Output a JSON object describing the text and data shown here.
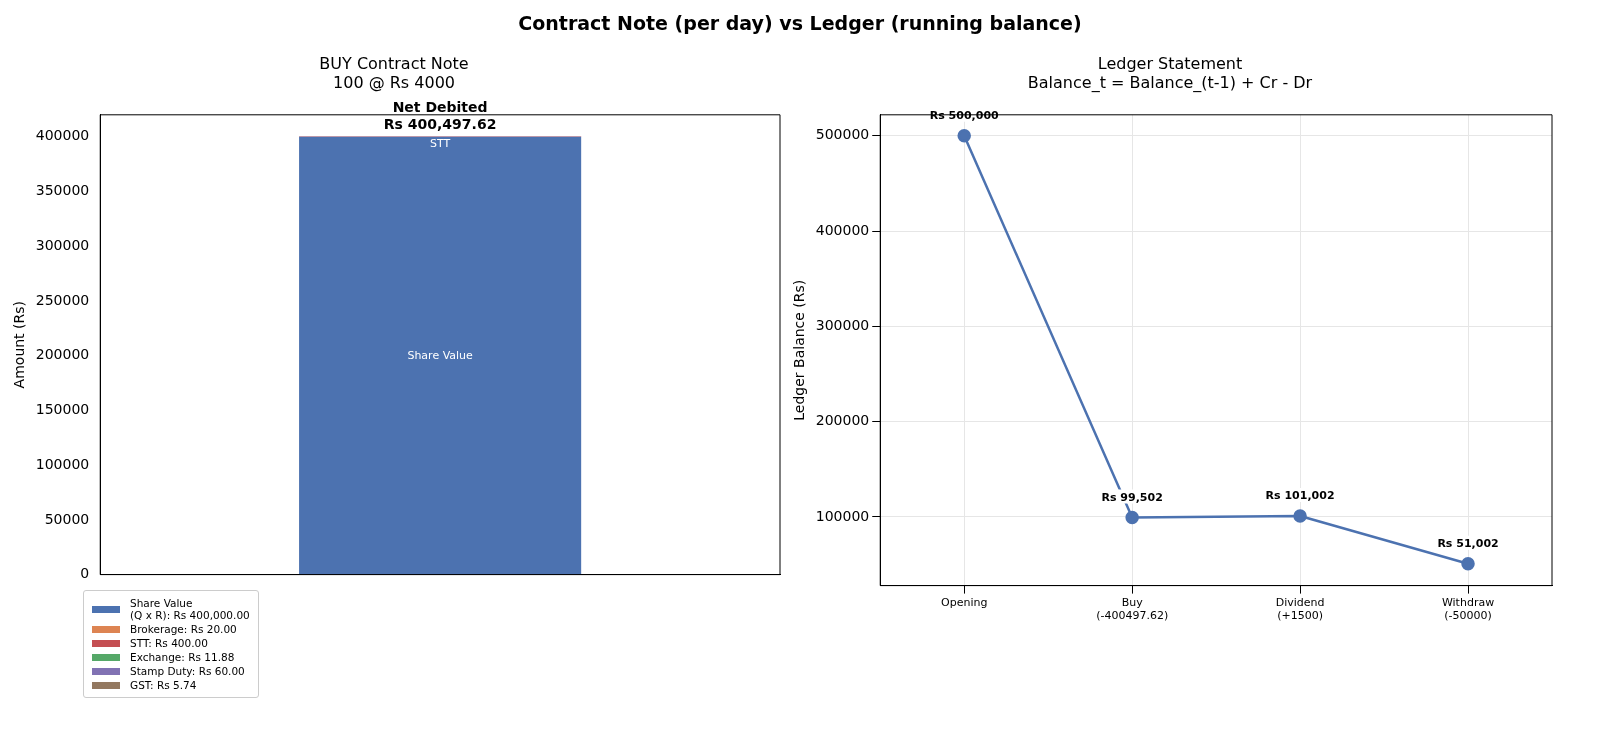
{
  "chart_data": [
    {
      "type": "bar",
      "title": "BUY Contract Note\n100 @ Rs 4000",
      "ylabel": "Amount (Rs)",
      "annotations": [
        "Contract Note (per day) vs Ledger (running balance)"
      ],
      "categories": [
        null
      ],
      "stacked": true,
      "series": [
        {
          "name": "Share Value\n(Q x R): Rs 400,000.00",
          "color": "#4c72b0",
          "values": [
            400000
          ],
          "value_labels": [
            "Share Value"
          ]
        },
        {
          "name": "Brokerage: Rs 20.00",
          "color": "#dd8452",
          "values": [
            20
          ]
        },
        {
          "name": "STT: Rs 400.00",
          "color": "#c44e52",
          "values": [
            400
          ],
          "value_labels": [
            "STT"
          ]
        },
        {
          "name": "Exchange: Rs 11.88",
          "color": "#55a868",
          "values": [
            11.88
          ]
        },
        {
          "name": "Stamp Duty: Rs 60.00",
          "color": "#8172b3",
          "values": [
            60
          ]
        },
        {
          "name": "GST: Rs 5.74",
          "color": "#937860",
          "values": [
            5.74
          ]
        }
      ],
      "totals": [
        "Net Debited\nRs 400,497.62"
      ],
      "ylim": [
        0,
        420000
      ],
      "yticks": [
        0,
        50000,
        100000,
        150000,
        200000,
        250000,
        300000,
        350000,
        400000
      ],
      "grid": false,
      "legend": "bottom left",
      "tick_labels": "y"
    },
    {
      "type": "line",
      "title": "Ledger Statement\nBalance_t = Balance_(t-1) + Cr - Dr",
      "ylabel": "Ledger Balance (Rs)",
      "categories": [
        "Opening",
        "Buy\n(-400497.62)",
        "Dividend\n(+1500)",
        "Withdraw\n(-50000)"
      ],
      "series": [
        {
          "color": "#4c72b0",
          "values": [
            500000,
            99502,
            101002,
            51002
          ],
          "value_labels": [
            "Rs 500,000",
            "Rs 99,502",
            "Rs 101,002",
            "Rs 51,002"
          ]
        }
      ],
      "ylim": [
        28000,
        522000
      ],
      "yticks": [
        100000,
        200000,
        300000,
        400000,
        500000
      ],
      "grid": true,
      "marker": "circle",
      "line_style": "solid"
    }
  ]
}
